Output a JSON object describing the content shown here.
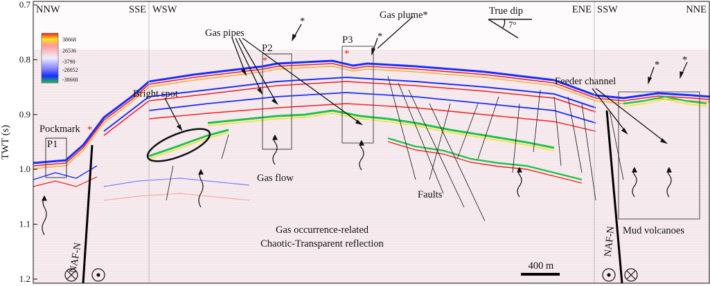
{
  "y_axis": {
    "label": "TWT (s)",
    "ticks": [
      "0.7",
      "0.8",
      "0.9",
      "1.0",
      "1.1",
      "1.2"
    ]
  },
  "panel_orientations": [
    {
      "left": "NNW",
      "right": "SSE"
    },
    {
      "left": "WSW",
      "right": "ENE"
    },
    {
      "left": "SSW",
      "right": "NNE"
    }
  ],
  "colorbar": {
    "labels": [
      "38668",
      "26536",
      "-3790",
      "-28052",
      "-38668"
    ],
    "colors": [
      "#f11d1d",
      "#f7e21c",
      "#e6e6ff",
      "#1b2cff",
      "#1fc14a"
    ]
  },
  "annotations": {
    "gas_pipes": "Gas pipes",
    "gas_plume": "Gas plume*",
    "true_dip": "True dip",
    "dip_angle": "7°",
    "bright_spot": "Bright spot",
    "pockmark": "Pockmark",
    "feeder_channel": "Feeder channel",
    "gas_flow": "Gas flow",
    "faults": "Faults",
    "gas_occurrence_line1": "Gas occurrence-related",
    "gas_occurrence_line2": "Chaotic-Transparent reflection",
    "mud_volcanoes": "Mud volcanoes",
    "naf_n_left": "NAF-N",
    "naf_n_right": "NAF-N",
    "scale_bar": "400 m",
    "asterisk": "*"
  },
  "boxes": [
    {
      "id": "P1",
      "label": "P1"
    },
    {
      "id": "P2",
      "label": "P2"
    },
    {
      "id": "P3",
      "label": "P3"
    }
  ],
  "colors": {
    "red_marker": "#e0261f",
    "line": "#111111",
    "panel_divider": "#bdbdbd"
  },
  "icons": [
    "into-page-icon",
    "out-of-page-icon"
  ]
}
